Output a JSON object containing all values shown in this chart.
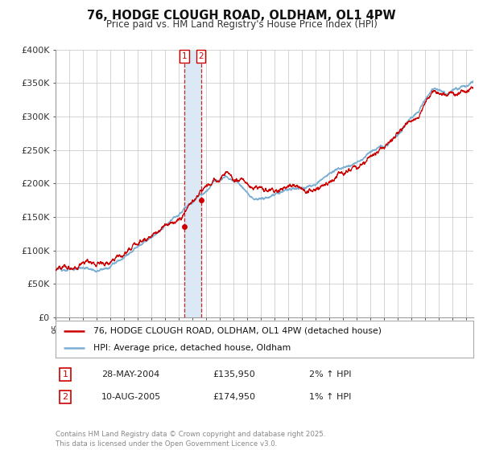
{
  "title": "76, HODGE CLOUGH ROAD, OLDHAM, OL1 4PW",
  "subtitle": "Price paid vs. HM Land Registry's House Price Index (HPI)",
  "ylabel_ticks": [
    "£0",
    "£50K",
    "£100K",
    "£150K",
    "£200K",
    "£250K",
    "£300K",
    "£350K",
    "£400K"
  ],
  "ylim": [
    0,
    400000
  ],
  "xlim_start": 1995.0,
  "xlim_end": 2025.5,
  "sale_dates": [
    2004.41,
    2005.61
  ],
  "sale_prices": [
    135950,
    174950
  ],
  "sale_labels": [
    "1",
    "2"
  ],
  "hpi_line_color": "#7bafd4",
  "price_line_color": "#cc0000",
  "vline_color": "#cc0000",
  "shade_color": "#dce9f5",
  "legend_entry1": "76, HODGE CLOUGH ROAD, OLDHAM, OL1 4PW (detached house)",
  "legend_entry2": "HPI: Average price, detached house, Oldham",
  "table_rows": [
    [
      "1",
      "28-MAY-2004",
      "£135,950",
      "2% ↑ HPI"
    ],
    [
      "2",
      "10-AUG-2005",
      "£174,950",
      "1% ↑ HPI"
    ]
  ],
  "footnote": "Contains HM Land Registry data © Crown copyright and database right 2025.\nThis data is licensed under the Open Government Licence v3.0.",
  "background_color": "#ffffff",
  "plot_bg_color": "#ffffff",
  "grid_color": "#cccccc"
}
